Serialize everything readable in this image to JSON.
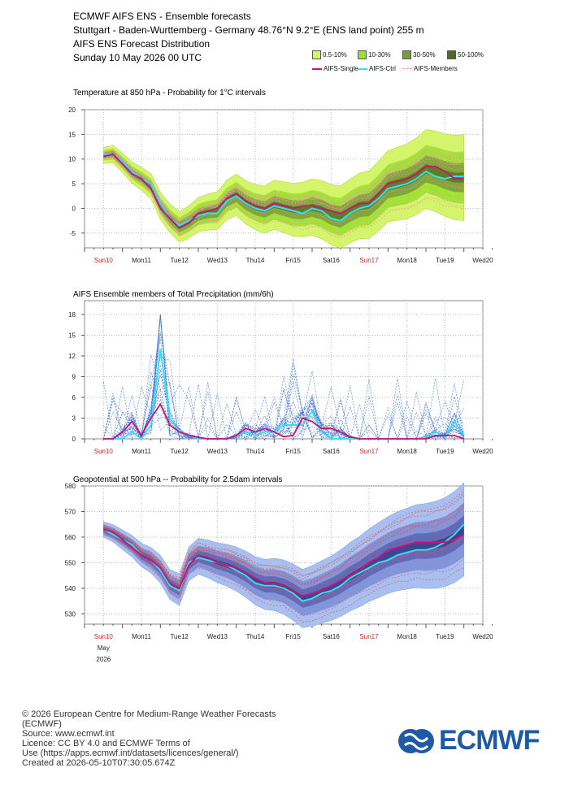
{
  "header": {
    "line1": "ECMWF AIFS ENS - Ensemble forecasts",
    "line2": "Stuttgart - Baden-Wurttemberg - Germany 48.76°N 9.2°E (ENS land point) 255 m",
    "line3": "AIFS ENS Forecast Distribution",
    "line4": "Sunday 10 May 2026 00 UTC"
  },
  "legend": {
    "boxes": [
      {
        "label": "0.5-10%",
        "color": "#d4f46b"
      },
      {
        "label": "10-30%",
        "color": "#9be22e"
      },
      {
        "label": "30-50%",
        "color": "#7f9a3e"
      },
      {
        "label": "50-100%",
        "color": "#4e6c1b"
      }
    ],
    "lines": [
      {
        "label": "AIFS-Single",
        "color": "#cc1177"
      },
      {
        "label": "AIFS-Ctrl",
        "color": "#33e0f0"
      },
      {
        "label": "AIFS-Members",
        "color": "#f090b0"
      }
    ]
  },
  "x_axis": {
    "days": [
      "Sun10",
      "Mon11",
      "Tue12",
      "Wed13",
      "Thu14",
      "Fri15",
      "Sat16",
      "Sun17",
      "Mon18",
      "Tue19",
      "Wed20"
    ],
    "weekend": [
      true,
      false,
      false,
      false,
      false,
      false,
      false,
      true,
      false,
      false,
      false
    ],
    "month_label": "May",
    "year_label": "2026"
  },
  "chart_data": [
    {
      "type": "area",
      "title": "Temperature at 850 hPa - Probability for 1°C intervals",
      "ylim": [
        -8,
        20
      ],
      "yticks": [
        -5,
        0,
        5,
        10,
        15,
        20
      ],
      "x": [
        0,
        0.25,
        0.5,
        0.75,
        1,
        1.25,
        1.5,
        1.75,
        2,
        2.25,
        2.5,
        2.75,
        3,
        3.25,
        3.5,
        3.75,
        4,
        4.25,
        4.5,
        4.75,
        5,
        5.25,
        5.5,
        5.75,
        6,
        6.25,
        6.5,
        6.75,
        7,
        7.25,
        7.5,
        7.75,
        8,
        8.25,
        8.5,
        8.75,
        9,
        9.25,
        9.5
      ],
      "series": [
        {
          "name": "AIFS-Single",
          "values": [
            10.5,
            11,
            9,
            7,
            6,
            4,
            0,
            -2,
            -4,
            -3,
            -1,
            -0.5,
            0,
            2,
            3,
            1.5,
            0.5,
            0,
            1,
            0.5,
            0,
            0.5,
            0.5,
            0,
            -0.5,
            -1,
            0,
            1,
            1,
            3,
            5,
            5.5,
            6,
            7,
            8.5,
            8.5,
            7.5,
            6,
            6
          ]
        },
        {
          "name": "AIFS-Ctrl",
          "values": [
            11,
            11,
            9.5,
            7.5,
            6,
            5,
            1,
            -2,
            -3.5,
            -2.5,
            -1.5,
            -1,
            -1,
            1.5,
            2.5,
            1,
            0,
            -0.5,
            0.5,
            0,
            -0.5,
            -1,
            0,
            -0.5,
            -2,
            -2.5,
            -1,
            0,
            0.5,
            2,
            4,
            4.5,
            5,
            6,
            7.5,
            6.5,
            6,
            6.5,
            6.5
          ]
        }
      ]
    },
    {
      "type": "line",
      "title": "AIFS Ensemble members of Total Precipitation (mm/6h)",
      "ylim": [
        0,
        20
      ],
      "yticks": [
        0,
        3,
        6,
        9,
        12,
        15,
        18
      ],
      "x": [
        0,
        0.25,
        0.5,
        0.75,
        1,
        1.25,
        1.5,
        1.75,
        2,
        2.25,
        2.5,
        2.75,
        3,
        3.25,
        3.5,
        3.75,
        4,
        4.25,
        4.5,
        4.75,
        5,
        5.25,
        5.5,
        5.75,
        6,
        6.25,
        6.5,
        6.75,
        7,
        7.25,
        7.5,
        7.75,
        8,
        8.25,
        8.5,
        8.75,
        9,
        9.25,
        9.5
      ],
      "series": [
        {
          "name": "AIFS-Single",
          "values": [
            0,
            0,
            1,
            2.5,
            0.5,
            3,
            5,
            2,
            1,
            0.5,
            0.2,
            0,
            0,
            0,
            0.5,
            1.5,
            1,
            1.5,
            1,
            0.3,
            0.5,
            3,
            2.5,
            1.5,
            1.5,
            1,
            0.3,
            0,
            0,
            0,
            0,
            0,
            0,
            0,
            0,
            0.5,
            0.5,
            0.5,
            0
          ]
        },
        {
          "name": "AIFS-Ctrl",
          "values": [
            0,
            0,
            0,
            1,
            0,
            2,
            13,
            3,
            1,
            0.5,
            0,
            0,
            0,
            0,
            0.5,
            1,
            0.5,
            1,
            1,
            2,
            2,
            2,
            4,
            1,
            0,
            0,
            0,
            0,
            0,
            0,
            0,
            0,
            0,
            0,
            0.3,
            1,
            0.3,
            2.5,
            0.5
          ]
        }
      ]
    },
    {
      "type": "area",
      "title": "Geopotential at 500 hPa -- Probability for 2.5dam intervals",
      "ylim": [
        526,
        580
      ],
      "yticks": [
        530,
        540,
        550,
        560,
        570,
        580
      ],
      "x": [
        0,
        0.25,
        0.5,
        0.75,
        1,
        1.25,
        1.5,
        1.75,
        2,
        2.25,
        2.5,
        2.75,
        3,
        3.25,
        3.5,
        3.75,
        4,
        4.25,
        4.5,
        4.75,
        5,
        5.25,
        5.5,
        5.75,
        6,
        6.25,
        6.5,
        6.75,
        7,
        7.25,
        7.5,
        7.75,
        8,
        8.25,
        8.5,
        8.75,
        9,
        9.25,
        9.5
      ],
      "series": [
        {
          "name": "AIFS-Single",
          "values": [
            563,
            562,
            559,
            556,
            553,
            551,
            548,
            542,
            540,
            549,
            553,
            552,
            550,
            549,
            548,
            546,
            544,
            542,
            542,
            541,
            539,
            537,
            538,
            539,
            541,
            543,
            545,
            547,
            550,
            552,
            555,
            556,
            557,
            558,
            558,
            558,
            558,
            559,
            561
          ]
        },
        {
          "name": "AIFS-Ctrl",
          "values": [
            563,
            561,
            559,
            557,
            553,
            551,
            547,
            541,
            539,
            550,
            552,
            551,
            550,
            549,
            547,
            545,
            542,
            541,
            541,
            540,
            538,
            535,
            536,
            538,
            539,
            541,
            544,
            546,
            548,
            550,
            551,
            553,
            554,
            555,
            555,
            556,
            558,
            561,
            565
          ]
        }
      ]
    }
  ],
  "footer": {
    "line1": "© 2026 European Centre for Medium-Range Weather Forecasts",
    "line2": "(ECMWF)",
    "line3": "Source: www.ecmwf.int",
    "line4": "Licence: CC BY 4.0 and ECMWF Terms of",
    "line5": "Use (https://apps.ecmwf.int/datasets/licences/general/)",
    "line6": "Created at 2026-05-10T07:30:05.674Z",
    "logo_text": "ECMWF"
  }
}
